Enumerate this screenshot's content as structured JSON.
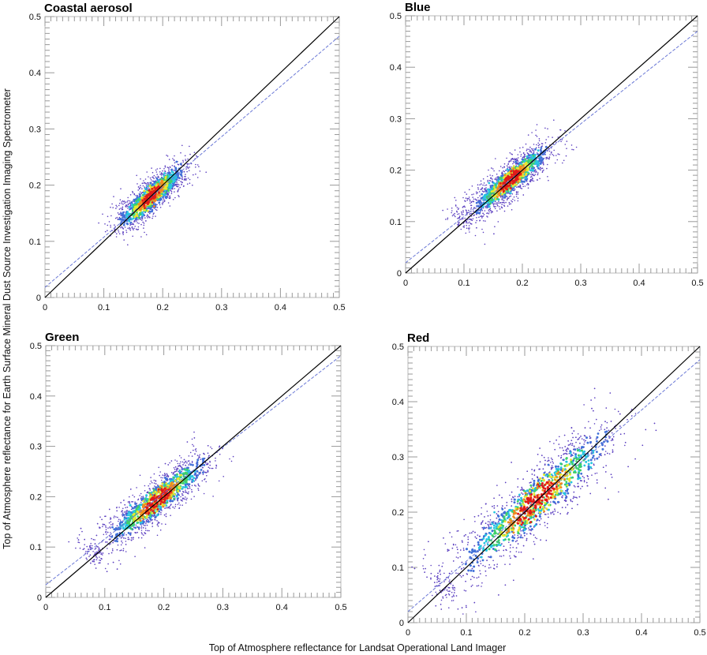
{
  "figure": {
    "xlabel": "Top of Atmosphere reflectance for Landsat Operational Land Imager",
    "ylabel": "Top of Atmosphere reflectance for Earth Surface Mineral Dust Source Investigation Imaging Spectrometer"
  },
  "colors": {
    "one_to_one_line": "#000000",
    "fit_line": "#6a78d6",
    "density_colormap": [
      "#5b3fc0",
      "#3f6fd8",
      "#27c6e0",
      "#3fd06a",
      "#e8e830",
      "#f08a20",
      "#e01a1a"
    ]
  },
  "chart_data": [
    {
      "type": "scatter",
      "title": "Coastal aerosol",
      "xlim": [
        0,
        0.5
      ],
      "ylim": [
        0,
        0.5
      ],
      "xticks": [
        "0",
        "0.1",
        "0.2",
        "0.3",
        "0.4",
        "0.5"
      ],
      "yticks": [
        "0",
        "0.1",
        "0.2",
        "0.3",
        "0.4",
        "0.5"
      ],
      "one_to_one": [
        [
          0,
          0
        ],
        [
          0.5,
          0.5
        ]
      ],
      "fit_line": [
        [
          0,
          0.018
        ],
        [
          0.5,
          0.465
        ]
      ],
      "density_scatter": true
    },
    {
      "type": "scatter",
      "title": "Blue",
      "xlim": [
        0,
        0.5
      ],
      "ylim": [
        0,
        0.5
      ],
      "xticks": [
        "0",
        "0.1",
        "0.2",
        "0.3",
        "0.4",
        "0.5"
      ],
      "yticks": [
        "0",
        "0.1",
        "0.2",
        "0.3",
        "0.4",
        "0.5"
      ],
      "one_to_one": [
        [
          0,
          0
        ],
        [
          0.5,
          0.5
        ]
      ],
      "fit_line": [
        [
          0,
          0.02
        ],
        [
          0.5,
          0.47
        ]
      ],
      "density_scatter": true
    },
    {
      "type": "scatter",
      "title": "Green",
      "xlim": [
        0,
        0.5
      ],
      "ylim": [
        0,
        0.5
      ],
      "xticks": [
        "0",
        "0.1",
        "0.2",
        "0.3",
        "0.4",
        "0.5"
      ],
      "yticks": [
        "0",
        "0.1",
        "0.2",
        "0.3",
        "0.4",
        "0.5"
      ],
      "one_to_one": [
        [
          0,
          0
        ],
        [
          0.5,
          0.5
        ]
      ],
      "fit_line": [
        [
          0,
          0.025
        ],
        [
          0.5,
          0.48
        ]
      ],
      "density_scatter": true
    },
    {
      "type": "scatter",
      "title": "Red",
      "xlim": [
        0,
        0.5
      ],
      "ylim": [
        0,
        0.5
      ],
      "xticks": [
        "0",
        "0.1",
        "0.2",
        "0.3",
        "0.4",
        "0.5"
      ],
      "yticks": [
        "0",
        "0.1",
        "0.2",
        "0.3",
        "0.4",
        "0.5"
      ],
      "one_to_one": [
        [
          0,
          0
        ],
        [
          0.5,
          0.5
        ]
      ],
      "fit_line": [
        [
          0,
          0.02
        ],
        [
          0.5,
          0.476
        ]
      ],
      "density_scatter": true
    }
  ]
}
